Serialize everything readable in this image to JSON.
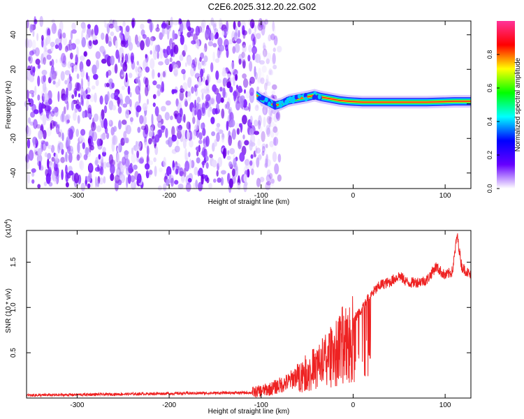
{
  "title": "C2E6.2025.312.20.22.G02",
  "chart_data": [
    {
      "type": "heatmap",
      "xlabel": "Height of straight line (km)",
      "ylabel": "Frequency (Hz)",
      "xlim": [
        -355,
        128
      ],
      "ylim": [
        -49,
        48
      ],
      "xticks": [
        -300,
        -200,
        -100,
        0,
        100
      ],
      "xtick_labels": [
        "-300",
        "-200",
        "-100",
        "0",
        "100"
      ],
      "yticks": [
        -40,
        -20,
        0,
        20,
        40
      ],
      "ytick_labels": [
        "-40",
        "-20",
        "0",
        "20",
        "40"
      ],
      "noise_region_x": [
        -355,
        -80
      ],
      "signal_start_x": -105,
      "signal_trace": [
        {
          "x": -105,
          "y": 5
        },
        {
          "x": -100,
          "y": 3
        },
        {
          "x": -92,
          "y": 1
        },
        {
          "x": -85,
          "y": -1
        },
        {
          "x": -78,
          "y": 0
        },
        {
          "x": -70,
          "y": 2
        },
        {
          "x": -60,
          "y": 3
        },
        {
          "x": -50,
          "y": 4
        },
        {
          "x": -42,
          "y": 5
        },
        {
          "x": -35,
          "y": 4
        },
        {
          "x": -25,
          "y": 3
        },
        {
          "x": -15,
          "y": 2
        },
        {
          "x": -5,
          "y": 1.5
        },
        {
          "x": 10,
          "y": 1
        },
        {
          "x": 40,
          "y": 1
        },
        {
          "x": 80,
          "y": 1
        },
        {
          "x": 110,
          "y": 1.5
        },
        {
          "x": 128,
          "y": 1.5
        }
      ],
      "colorbar": {
        "label": "Normalized spectral amplitude",
        "range": [
          0,
          1
        ],
        "ticks": [
          0.0,
          0.2,
          0.4,
          0.6,
          0.8
        ],
        "tick_labels": [
          "0.0",
          "0.2",
          "0.4",
          "0.6",
          "0.8"
        ],
        "colors": [
          "#ffffff",
          "#6600ff",
          "#0000ff",
          "#00ffff",
          "#00ff00",
          "#ffff00",
          "#ff0000",
          "#ff3399"
        ]
      }
    },
    {
      "type": "line",
      "xlabel": "Height of straight line (km)",
      "ylabel": "SNR (10 * v/v)",
      "y_scale_label": "(x10",
      "y_scale_exponent": "4",
      "y_scale_close": ")",
      "xlim": [
        -355,
        128
      ],
      "ylim": [
        0,
        1.85
      ],
      "xticks": [
        -300,
        -200,
        -100,
        0,
        100
      ],
      "xtick_labels": [
        "-300",
        "-200",
        "-100",
        "0",
        "100"
      ],
      "yticks": [
        0.5,
        1.0,
        1.5
      ],
      "ytick_labels": [
        "0.5",
        "1.0",
        "1.5"
      ],
      "color": "#ee2222",
      "series_envelope": [
        {
          "x": -355,
          "y": 0.03
        },
        {
          "x": -200,
          "y": 0.05
        },
        {
          "x": -110,
          "y": 0.06
        },
        {
          "x": -90,
          "y": 0.1
        },
        {
          "x": -70,
          "y": 0.18
        },
        {
          "x": -55,
          "y": 0.3
        },
        {
          "x": -40,
          "y": 0.4
        },
        {
          "x": -25,
          "y": 0.55
        },
        {
          "x": -10,
          "y": 0.75
        },
        {
          "x": 0,
          "y": 0.85
        },
        {
          "x": 10,
          "y": 1.0
        },
        {
          "x": 20,
          "y": 1.15
        },
        {
          "x": 30,
          "y": 1.25
        },
        {
          "x": 40,
          "y": 1.28
        },
        {
          "x": 50,
          "y": 1.35
        },
        {
          "x": 60,
          "y": 1.27
        },
        {
          "x": 70,
          "y": 1.28
        },
        {
          "x": 80,
          "y": 1.3
        },
        {
          "x": 90,
          "y": 1.45
        },
        {
          "x": 100,
          "y": 1.35
        },
        {
          "x": 108,
          "y": 1.4
        },
        {
          "x": 113,
          "y": 1.8
        },
        {
          "x": 118,
          "y": 1.45
        },
        {
          "x": 128,
          "y": 1.35
        }
      ]
    }
  ]
}
